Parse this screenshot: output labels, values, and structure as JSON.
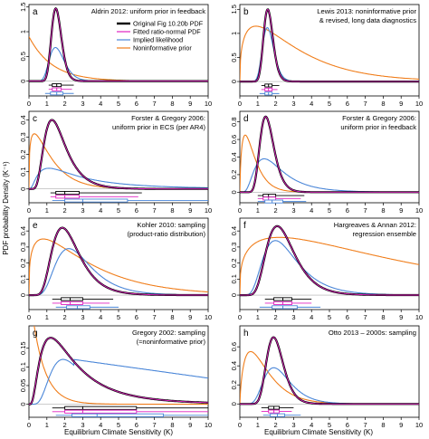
{
  "figure": {
    "ylabel": "PDF probability Density (K⁻¹)",
    "xlabel": "Equilibrium Climate Sensitivity (K)"
  },
  "legend": {
    "entries": [
      {
        "label": "Original Fig 10.20b PDF",
        "color": "#000000"
      },
      {
        "label": "Fitted ratio-normal PDF",
        "color": "#e020c0"
      },
      {
        "label": "Implied likelihood",
        "color": "#4a86d8"
      },
      {
        "label": "Noninformative prior",
        "color": "#f07d1a"
      }
    ]
  },
  "colors": {
    "original": "#000000",
    "fitted": "#e020c0",
    "likelihood": "#4a86d8",
    "prior": "#f07d1a"
  },
  "chart_data": [
    {
      "type": "line",
      "letter": "a",
      "title_lines": [
        "Aldrin 2012: uniform prior in feedback"
      ],
      "xlim": [
        0,
        10
      ],
      "ylim": [
        -0.3,
        1.55
      ],
      "yticks": [
        0,
        0.5,
        1,
        1.5
      ],
      "xticks": [
        0,
        1,
        2,
        3,
        4,
        5,
        6,
        7,
        8,
        9,
        10
      ],
      "series": [
        {
          "key": "original",
          "model": "ratio",
          "mean": 1.55,
          "sd": 0.29,
          "peak": 1.47
        },
        {
          "key": "fitted",
          "model": "ratio",
          "mean": 1.55,
          "sd": 0.29,
          "peak": 1.47
        },
        {
          "key": "likelihood",
          "model": "ratio",
          "mean": 1.6,
          "sd": 0.45,
          "peak": 0.68
        },
        {
          "key": "prior",
          "model": "gamma",
          "mode": 0.0,
          "scale": 1.3,
          "peak": 0.9
        }
      ],
      "boxes": [
        {
          "key": "original",
          "range": [
            1.1,
            2.5
          ],
          "box": [
            1.3,
            1.8
          ],
          "median": 1.55
        },
        {
          "key": "fitted",
          "range": [
            1.1,
            2.4
          ],
          "box": [
            1.3,
            1.8
          ],
          "median": 1.55
        },
        {
          "key": "likelihood",
          "range": [
            0.9,
            2.5
          ],
          "box": [
            1.2,
            1.9
          ],
          "median": 1.55
        }
      ]
    },
    {
      "type": "line",
      "letter": "b",
      "title_lines": [
        "Lewis 2013: noninformative prior",
        "& revised, long data diagnostics"
      ],
      "xlim": [
        0,
        10
      ],
      "ylim": [
        -0.3,
        1.6
      ],
      "yticks": [
        0,
        0.5,
        1,
        1.5
      ],
      "xticks": [
        0,
        1,
        2,
        3,
        4,
        5,
        6,
        7,
        8,
        9,
        10
      ],
      "series": [
        {
          "key": "original",
          "model": "ratio",
          "mean": 1.6,
          "sd": 0.27,
          "peak": 1.5
        },
        {
          "key": "fitted",
          "model": "ratio",
          "mean": 1.6,
          "sd": 0.27,
          "peak": 1.5
        },
        {
          "key": "likelihood",
          "model": "ratio",
          "mean": 1.6,
          "sd": 0.33,
          "peak": 1.12
        },
        {
          "key": "prior",
          "model": "gamma",
          "mode": 0.9,
          "scale": 2.2,
          "peak": 1.15
        }
      ],
      "boxes": [
        {
          "key": "original",
          "range": [
            1.2,
            2.2
          ],
          "box": [
            1.4,
            1.8
          ],
          "median": 1.6
        },
        {
          "key": "fitted",
          "range": [
            1.2,
            2.1
          ],
          "box": [
            1.4,
            1.8
          ],
          "median": 1.6
        },
        {
          "key": "likelihood",
          "range": [
            1.1,
            2.2
          ],
          "box": [
            1.4,
            1.8
          ],
          "median": 1.6
        }
      ]
    },
    {
      "type": "line",
      "letter": "c",
      "title_lines": [
        "Forster & Gregory 2006:",
        "uniform prior in ECS (per AR4)"
      ],
      "xlim": [
        0,
        10
      ],
      "ylim": [
        -0.08,
        0.45
      ],
      "yticks": [
        0,
        0.1,
        0.2,
        0.3,
        0.4
      ],
      "xticks": [
        0,
        1,
        2,
        3,
        4,
        5,
        6,
        7,
        8,
        9,
        10
      ],
      "series": [
        {
          "key": "original",
          "model": "ratio",
          "mean": 1.6,
          "sd": 0.75,
          "peak": 0.4
        },
        {
          "key": "fitted",
          "model": "ratio",
          "mean": 1.6,
          "sd": 0.75,
          "peak": 0.4
        },
        {
          "key": "likelihood",
          "model": "ratio",
          "mean": 2.6,
          "sd": 2.4,
          "peak": 0.12
        },
        {
          "key": "prior",
          "model": "gamma",
          "mode": 0.3,
          "scale": 0.9,
          "peak": 0.32
        }
      ],
      "boxes": [
        {
          "key": "original",
          "range": [
            1.2,
            6.3
          ],
          "box": [
            1.5,
            2.8
          ],
          "median": 2.0
        },
        {
          "key": "fitted",
          "range": [
            1.2,
            6.1
          ],
          "box": [
            1.5,
            2.8
          ],
          "median": 2.0
        },
        {
          "key": "likelihood",
          "range": [
            1.3,
            10
          ],
          "box": [
            2.0,
            5.5
          ],
          "median": 3.0
        }
      ]
    },
    {
      "type": "line",
      "letter": "d",
      "title_lines": [
        "Forster & Gregory 2006:",
        "uniform prior in feedback"
      ],
      "xlim": [
        0,
        10
      ],
      "ylim": [
        -0.12,
        0.92
      ],
      "yticks": [
        0,
        0.2,
        0.4,
        0.6,
        0.8
      ],
      "xticks": [
        0,
        1,
        2,
        3,
        4,
        5,
        6,
        7,
        8,
        9,
        10
      ],
      "series": [
        {
          "key": "original",
          "model": "ratio",
          "mean": 1.55,
          "sd": 0.42,
          "peak": 0.86
        },
        {
          "key": "fitted",
          "model": "ratio",
          "mean": 1.55,
          "sd": 0.42,
          "peak": 0.86
        },
        {
          "key": "likelihood",
          "model": "ratio",
          "mean": 1.9,
          "sd": 1.1,
          "peak": 0.38
        },
        {
          "key": "prior",
          "model": "gamma",
          "mode": 0.3,
          "scale": 0.45,
          "peak": 0.65
        }
      ],
      "boxes": [
        {
          "key": "original",
          "range": [
            1.0,
            3.6
          ],
          "box": [
            1.3,
            2.0
          ],
          "median": 1.6
        },
        {
          "key": "fitted",
          "range": [
            1.0,
            3.4
          ],
          "box": [
            1.3,
            2.0
          ],
          "median": 1.6
        },
        {
          "key": "likelihood",
          "range": [
            1.0,
            3.7
          ],
          "box": [
            1.4,
            2.4
          ],
          "median": 1.8
        }
      ]
    },
    {
      "type": "line",
      "letter": "e",
      "title_lines": [
        "Kohler 2010: sampling",
        "(product-ratio distribution)"
      ],
      "xlim": [
        0,
        10
      ],
      "ylim": [
        -0.09,
        0.48
      ],
      "yticks": [
        0,
        0.1,
        0.2,
        0.3,
        0.4
      ],
      "xticks": [
        0,
        1,
        2,
        3,
        4,
        5,
        6,
        7,
        8,
        9,
        10
      ],
      "series": [
        {
          "key": "original",
          "model": "ratio",
          "mean": 2.2,
          "sd": 0.9,
          "peak": 0.42
        },
        {
          "key": "fitted",
          "model": "ratio",
          "mean": 2.2,
          "sd": 0.9,
          "peak": 0.42
        },
        {
          "key": "likelihood",
          "model": "ratio",
          "mean": 2.7,
          "sd": 1.2,
          "peak": 0.29
        },
        {
          "key": "prior",
          "model": "gamma",
          "mode": 0.8,
          "scale": 2.5,
          "peak": 0.35
        }
      ],
      "boxes": [
        {
          "key": "original",
          "range": [
            1.3,
            4.7
          ],
          "box": [
            1.8,
            3.0
          ],
          "median": 2.3
        },
        {
          "key": "fitted",
          "range": [
            1.3,
            4.5
          ],
          "box": [
            1.8,
            3.0
          ],
          "median": 2.3
        },
        {
          "key": "likelihood",
          "range": [
            1.5,
            5.0
          ],
          "box": [
            2.1,
            3.4
          ],
          "median": 2.7
        }
      ]
    },
    {
      "type": "line",
      "letter": "f",
      "title_lines": [
        "Hargreaves & Annan 2012:",
        "regression ensemble"
      ],
      "xlim": [
        0,
        10
      ],
      "ylim": [
        -0.09,
        0.48
      ],
      "yticks": [
        0,
        0.1,
        0.2,
        0.3,
        0.4
      ],
      "xticks": [
        0,
        1,
        2,
        3,
        4,
        5,
        6,
        7,
        8,
        9,
        10
      ],
      "series": [
        {
          "key": "original",
          "model": "ratio",
          "mean": 2.4,
          "sd": 0.9,
          "peak": 0.43
        },
        {
          "key": "fitted",
          "model": "ratio",
          "mean": 2.4,
          "sd": 0.9,
          "peak": 0.43
        },
        {
          "key": "likelihood",
          "model": "ratio",
          "mean": 2.5,
          "sd": 1.2,
          "peak": 0.34
        },
        {
          "key": "prior",
          "model": "gamma",
          "mode": 2.2,
          "scale": 7.0,
          "peak": 0.36
        }
      ],
      "boxes": [
        {
          "key": "original",
          "range": [
            1.4,
            4.0
          ],
          "box": [
            1.9,
            2.9
          ],
          "median": 2.4
        },
        {
          "key": "fitted",
          "range": [
            1.4,
            4.0
          ],
          "box": [
            1.9,
            2.9
          ],
          "median": 2.4
        },
        {
          "key": "likelihood",
          "range": [
            1.1,
            4.5
          ],
          "box": [
            1.8,
            3.2
          ],
          "median": 2.4
        }
      ]
    },
    {
      "type": "line",
      "letter": "g",
      "title_lines": [
        "Gregory 2002: sampling",
        "(≈noninformative prior)"
      ],
      "xlim": [
        0,
        10
      ],
      "ylim": [
        -0.035,
        0.21
      ],
      "yticks": [
        0,
        0.05,
        0.1,
        0.15
      ],
      "xticks": [
        0,
        1,
        2,
        3,
        4,
        5,
        6,
        7,
        8,
        9,
        10
      ],
      "series": [
        {
          "key": "original",
          "model": "ratio",
          "mean": 2.2,
          "sd": 1.7,
          "peak": 0.178
        },
        {
          "key": "fitted",
          "model": "ratio",
          "mean": 2.2,
          "sd": 1.7,
          "peak": 0.178
        },
        {
          "key": "likelihood",
          "model": "flat",
          "mean": 2.5,
          "sd": 1.3,
          "peak": 0.12
        },
        {
          "key": "prior",
          "model": "decay",
          "mode": 0.0,
          "scale": 0.7,
          "peak": 0.2
        }
      ],
      "boxes": [
        {
          "key": "original",
          "range": [
            1.3,
            10
          ],
          "box": [
            2.0,
            6.0
          ],
          "median": 3.0
        },
        {
          "key": "fitted",
          "range": [
            1.3,
            10
          ],
          "box": [
            2.0,
            6.0
          ],
          "median": 3.0
        },
        {
          "key": "likelihood",
          "range": [
            1.5,
            10
          ],
          "box": [
            2.4,
            7.5
          ],
          "median": 3.8
        }
      ]
    },
    {
      "type": "line",
      "letter": "h",
      "title_lines": [
        "Otto 2013 – 2000s: sampling"
      ],
      "xlim": [
        0,
        10
      ],
      "ylim": [
        -0.14,
        0.82
      ],
      "yticks": [
        0,
        0.2,
        0.4,
        0.6
      ],
      "xticks": [
        0,
        1,
        2,
        3,
        4,
        5,
        6,
        7,
        8,
        9,
        10
      ],
      "series": [
        {
          "key": "original",
          "model": "ratio",
          "mean": 2.0,
          "sd": 0.5,
          "peak": 0.7
        },
        {
          "key": "fitted",
          "model": "ratio",
          "mean": 2.0,
          "sd": 0.5,
          "peak": 0.7
        },
        {
          "key": "likelihood",
          "model": "ratio",
          "mean": 2.2,
          "sd": 0.85,
          "peak": 0.38
        },
        {
          "key": "prior",
          "model": "gamma",
          "mode": 0.6,
          "scale": 0.8,
          "peak": 0.55
        }
      ],
      "boxes": [
        {
          "key": "original",
          "range": [
            1.2,
            3.0
          ],
          "box": [
            1.6,
            2.2
          ],
          "median": 1.9
        },
        {
          "key": "fitted",
          "range": [
            1.2,
            2.9
          ],
          "box": [
            1.6,
            2.2
          ],
          "median": 1.9
        },
        {
          "key": "likelihood",
          "range": [
            1.3,
            3.4
          ],
          "box": [
            1.7,
            2.5
          ],
          "median": 2.1
        }
      ]
    }
  ]
}
